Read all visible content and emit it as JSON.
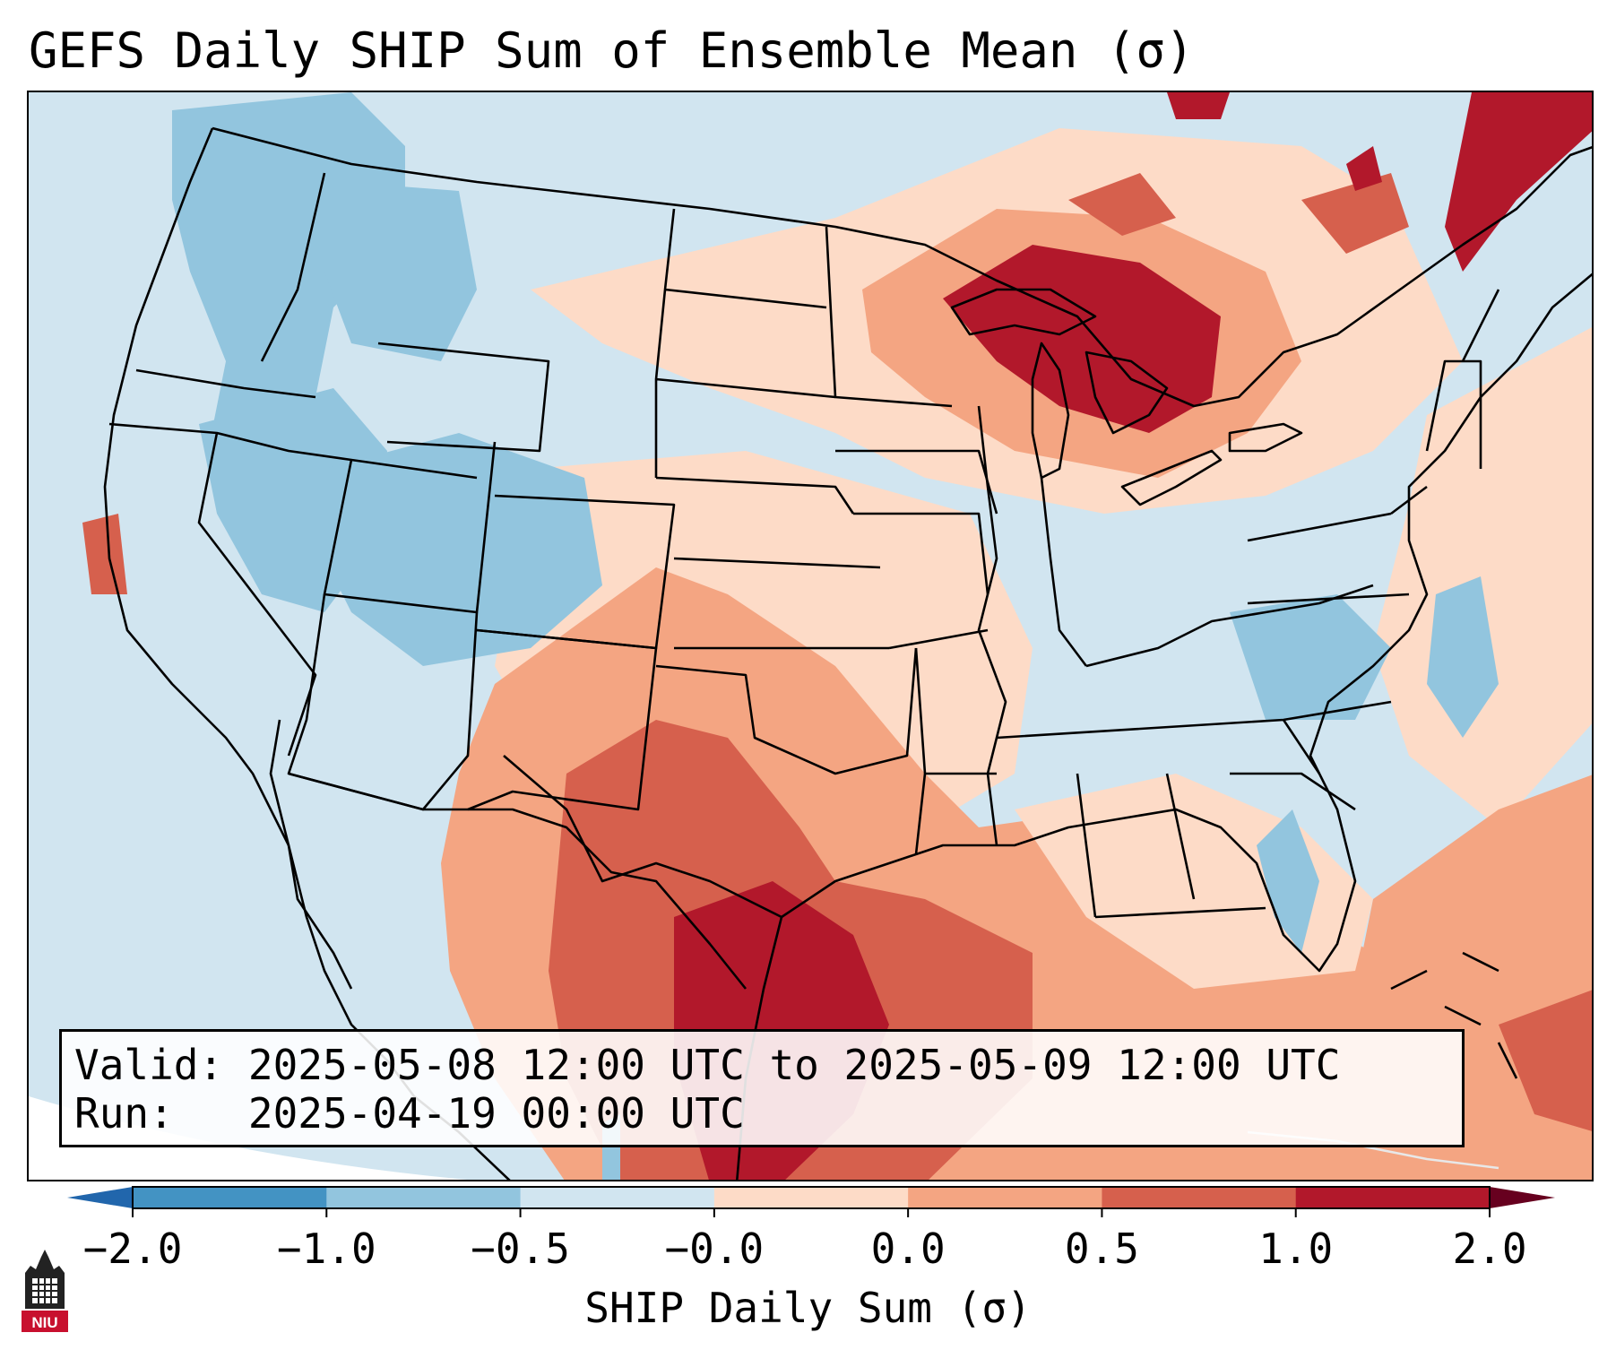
{
  "title": "GEFS Daily SHIP Sum of Ensemble Mean (σ)",
  "info": {
    "valid_label": "Valid:",
    "valid_value": "2025-05-08 12:00 UTC to 2025-05-09 12:00 UTC",
    "run_label": "Run:",
    "run_value": "2025-04-19 00:00 UTC"
  },
  "colorbar": {
    "label": "SHIP Daily Sum (σ)",
    "ticks": [
      "−2.0",
      "−1.0",
      "−0.5",
      "−0.0",
      "0.0",
      "0.5",
      "1.0",
      "2.0"
    ],
    "colors": [
      "#4393c3",
      "#92c5de",
      "#d1e5f0",
      "#fddbc7",
      "#f4a582",
      "#d6604d",
      "#b2182b"
    ],
    "under_color": "#2166ac",
    "over_color": "#67001f"
  },
  "logo": {
    "name": "NIU",
    "text": "NIU",
    "color": "#c8102e"
  },
  "map": {
    "region": "Contiguous United States",
    "background_color": "#d1e5f0",
    "outside_color": "#ffffff",
    "region_colors": {
      "great_lakes": "#b2182b",
      "southern_plains": "#d6604d",
      "texas_gulf": "#b2182b",
      "northeast_pink": "#fddbc7",
      "great_basin": "#92c5de",
      "caribbean": "#f4a582"
    }
  }
}
